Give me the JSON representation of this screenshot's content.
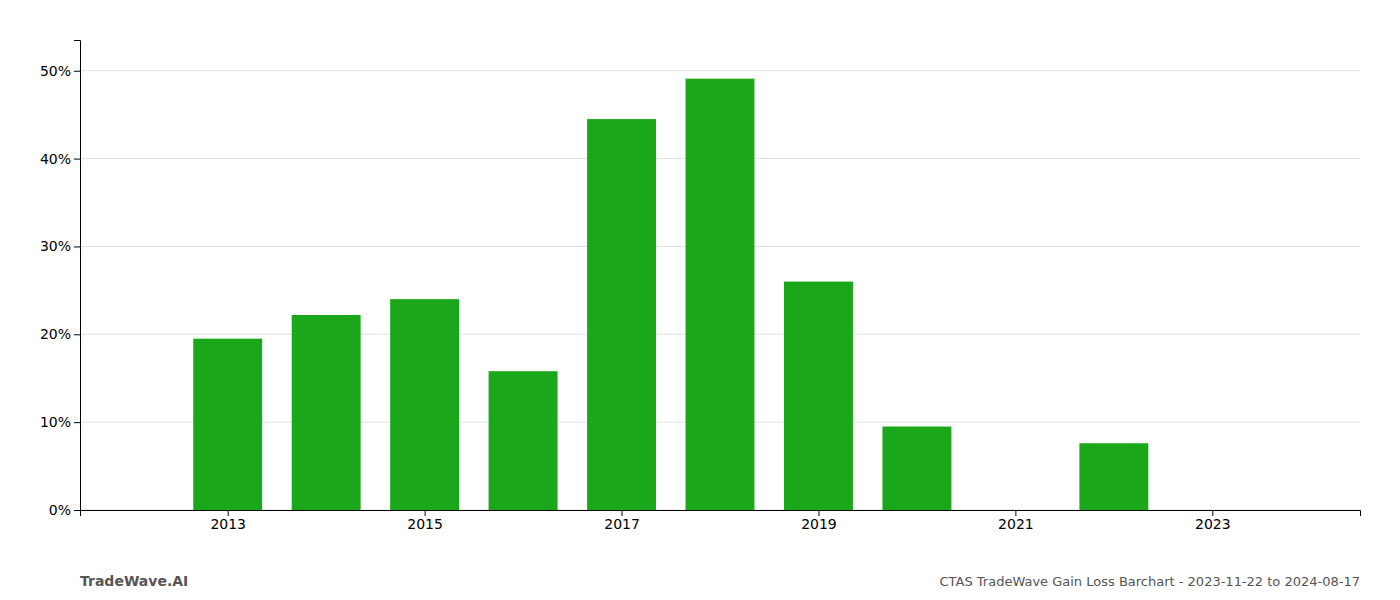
{
  "chart_data": {
    "type": "bar",
    "x": [
      2013,
      2014,
      2015,
      2016,
      2017,
      2018,
      2019,
      2020,
      2022
    ],
    "values": [
      0.195,
      0.222,
      0.24,
      0.158,
      0.445,
      0.491,
      0.26,
      0.095,
      0.076
    ],
    "color": "#1aa81a",
    "xlim": [
      2011.5,
      2024.5
    ],
    "xticks": [
      2013,
      2015,
      2017,
      2019,
      2021,
      2023
    ],
    "ylim": [
      0,
      0.535
    ],
    "yticks": [
      {
        "value": 0.0,
        "label": "0%"
      },
      {
        "value": 0.1,
        "label": "10%"
      },
      {
        "value": 0.2,
        "label": "20%"
      },
      {
        "value": 0.3,
        "label": "30%"
      },
      {
        "value": 0.4,
        "label": "40%"
      },
      {
        "value": 0.5,
        "label": "50%"
      }
    ],
    "grid": true,
    "annotations": [
      "TradeWave.AI",
      "CTAS TradeWave Gain Loss Barchart - 2023-11-22 to 2024-08-17"
    ]
  }
}
